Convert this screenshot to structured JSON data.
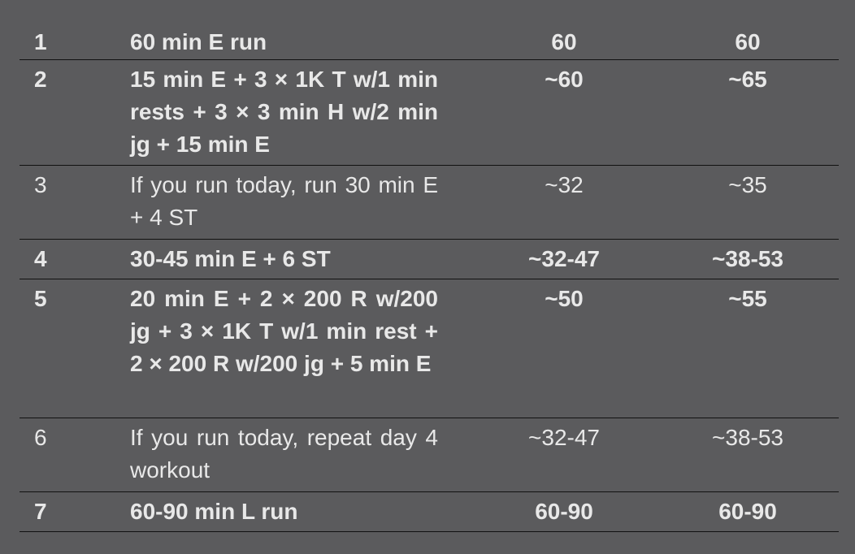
{
  "rows": [
    {
      "day": "1",
      "workout": "60 min E run",
      "col3": "60",
      "col4": "60",
      "bold": true
    },
    {
      "day": "2",
      "workout": "15 min E + 3 × 1K T w/1 min rests + 3 × 3 min H w/2 min jg + 15 min E",
      "col3": "~60",
      "col4": "~65",
      "bold": true
    },
    {
      "day": "3",
      "workout": "If you run today, run 30 min E + 4 ST",
      "col3": "~32",
      "col4": "~35",
      "bold": false
    },
    {
      "day": "4",
      "workout": "30-45 min E + 6 ST",
      "col3": "~32-47",
      "col4": "~38-53",
      "bold": true
    },
    {
      "day": "5",
      "workout": "20 min E + 2 × 200 R w/200 jg + 3 × 1K T w/1 min rest + 2 × 200 R w/200 jg + 5 min E",
      "col3": "~50",
      "col4": "~55",
      "bold": true
    },
    {
      "day": "6",
      "workout": "If you run today, repeat day 4 workout",
      "col3": "~32-47",
      "col4": "~38-53",
      "bold": false
    },
    {
      "day": "7",
      "workout": "60-90 min L run",
      "col3": "60-90",
      "col4": "60-90",
      "bold": true
    }
  ]
}
